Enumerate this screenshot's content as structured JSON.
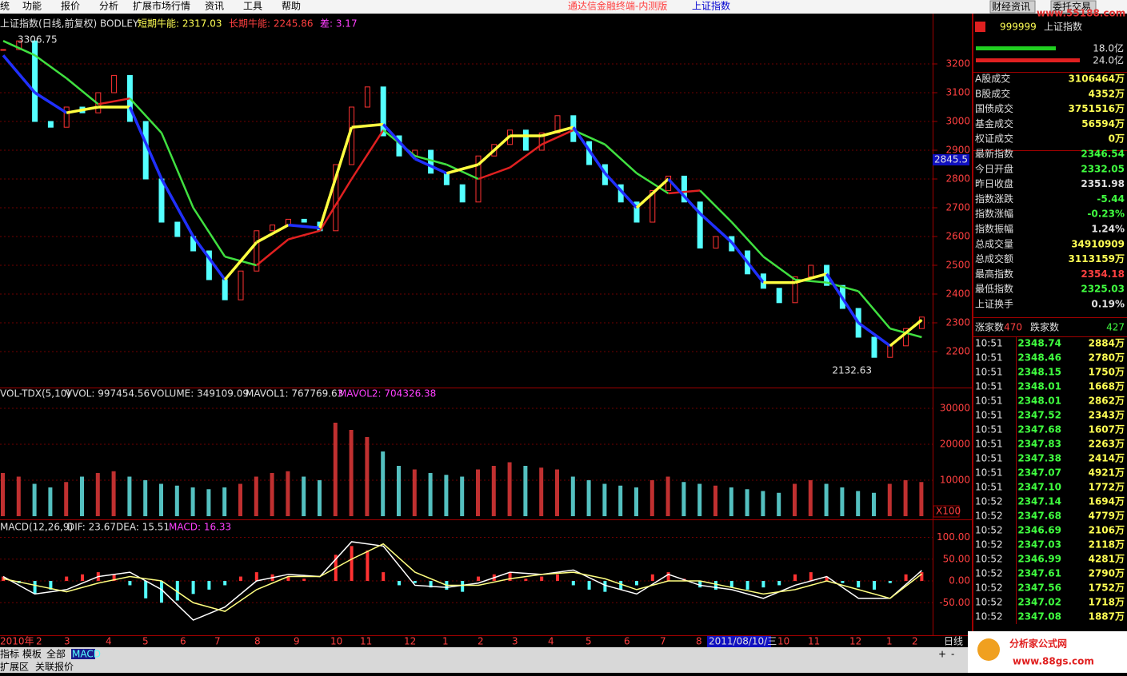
{
  "menu": {
    "items": [
      "统",
      "功能",
      "报价",
      "分析",
      "扩展市场行情",
      "资讯",
      "工具",
      "帮助"
    ],
    "title": "通达信金融终端-内测版",
    "title_link": "上证指数",
    "buttons": [
      "财经资讯",
      "委托交易"
    ],
    "watermark": "www.55188.com"
  },
  "main_chart": {
    "headers": [
      "上证指数(日线,前复权) BODLEY",
      "短期牛能: 2317.03",
      "长期牛能: 2245.86",
      "差: 3.17"
    ],
    "high_label": "3306.75",
    "low_label": "2132.63",
    "cursor_price": "2845.5",
    "yticks": [
      2200,
      2300,
      2400,
      2500,
      2600,
      2700,
      2800,
      2900,
      3000,
      3100,
      3200
    ],
    "close": [
      3250,
      3280,
      3000,
      2980,
      3050,
      3030,
      3100,
      3160,
      3000,
      2800,
      2650,
      2600,
      2550,
      2450,
      2380,
      2480,
      2620,
      2640,
      2660,
      2650,
      2620,
      2850,
      3050,
      3120,
      2950,
      2880,
      2900,
      2820,
      2780,
      2720,
      2880,
      2920,
      2970,
      2900,
      2960,
      3020,
      2930,
      2850,
      2780,
      2720,
      2650,
      2760,
      2810,
      2720,
      2560,
      2600,
      2550,
      2470,
      2420,
      2370,
      2460,
      2500,
      2430,
      2350,
      2250,
      2180,
      2220,
      2280,
      2320
    ],
    "short_ma": [
      3230,
      3100,
      3030,
      3050,
      3050,
      2800,
      2600,
      2450,
      2580,
      2640,
      2630,
      2980,
      2990,
      2870,
      2820,
      2850,
      2950,
      2950,
      2980,
      2820,
      2700,
      2800,
      2680,
      2580,
      2440,
      2440,
      2470,
      2300,
      2220,
      2310
    ],
    "long_ma": [
      3280,
      3230,
      3150,
      3060,
      3080,
      2960,
      2700,
      2530,
      2500,
      2590,
      2620,
      2800,
      2970,
      2880,
      2850,
      2800,
      2840,
      2920,
      2970,
      2920,
      2820,
      2750,
      2760,
      2650,
      2530,
      2450,
      2440,
      2410,
      2280,
      2250
    ]
  },
  "volume_chart": {
    "headers": [
      "VOL-TDX(5,10)",
      "VVOL: 997454.56",
      "VOLUME: 349109.09",
      "MAVOL1: 767769.63",
      "MAVOL2: 704326.38"
    ],
    "unit": "X100",
    "yticks": [
      10000,
      20000,
      30000
    ],
    "values": [
      12000,
      11000,
      9000,
      8000,
      9500,
      11000,
      12000,
      12500,
      11000,
      10000,
      9000,
      8500,
      8000,
      7500,
      8000,
      9000,
      11000,
      12000,
      12500,
      11000,
      10000,
      26000,
      24000,
      22000,
      18000,
      14000,
      13000,
      12000,
      11500,
      11000,
      13000,
      14000,
      15000,
      14000,
      13500,
      13000,
      11000,
      10000,
      9000,
      8500,
      8000,
      10000,
      11000,
      9500,
      9000,
      8500,
      8000,
      7500,
      7000,
      6500,
      9000,
      10000,
      9000,
      8000,
      7000,
      6500,
      9000,
      10000,
      9500
    ]
  },
  "macd_chart": {
    "headers": [
      "MACD(12,26,9)",
      "DIF: 23.67",
      "DEA: 15.51",
      "MACD: 16.33"
    ],
    "yticks": [
      {
        "value": 100,
        "label": "100.00"
      },
      {
        "value": 50,
        "label": "50.00"
      },
      {
        "value": 0,
        "label": "0.00"
      },
      {
        "value": -50,
        "label": "-50.00"
      }
    ],
    "macd": [
      10,
      -5,
      -30,
      -20,
      10,
      15,
      20,
      15,
      -10,
      -40,
      -50,
      -45,
      -30,
      -20,
      -10,
      10,
      20,
      15,
      10,
      5,
      0,
      60,
      80,
      70,
      20,
      -10,
      -5,
      -15,
      -20,
      -25,
      10,
      15,
      20,
      5,
      10,
      15,
      -10,
      -20,
      -25,
      -20,
      -10,
      15,
      20,
      5,
      -15,
      -20,
      -15,
      -20,
      -15,
      -10,
      15,
      20,
      10,
      -5,
      -15,
      -20,
      -5,
      15,
      20
    ],
    "dif": [
      10,
      -30,
      -20,
      10,
      20,
      -20,
      -90,
      -60,
      0,
      15,
      10,
      90,
      80,
      -10,
      -15,
      -5,
      20,
      15,
      25,
      -10,
      -30,
      15,
      -10,
      -20,
      -40,
      -10,
      10,
      -40,
      -40,
      24
    ],
    "dea": [
      5,
      -10,
      -25,
      -5,
      10,
      0,
      -50,
      -70,
      -20,
      10,
      10,
      50,
      85,
      20,
      -10,
      -10,
      5,
      15,
      20,
      5,
      -20,
      0,
      0,
      -15,
      -30,
      -20,
      0,
      -20,
      -40,
      16
    ]
  },
  "date_axis": {
    "labels": [
      "2010年",
      "2",
      "3",
      "4",
      "5",
      "6",
      "7",
      "8",
      "9",
      "10",
      "11",
      "12",
      "1",
      "2",
      "3",
      "4",
      "5",
      "6",
      "7",
      "8",
      "10",
      "11",
      "12",
      "1",
      "2"
    ],
    "cursor_date": "2011/08/10/三",
    "period": "日线"
  },
  "bottom_bar": {
    "tabs": [
      "指标",
      "模板",
      "全部",
      "MACD"
    ],
    "links": [
      "扩展区",
      "关联报价"
    ],
    "zoom": [
      "+",
      "-"
    ]
  },
  "quote": {
    "code": "999999",
    "name": "上证指数",
    "bar1": "18.0亿",
    "bar2": "24.0亿",
    "rows": [
      [
        "A股成交",
        "3106464万"
      ],
      [
        "B股成交",
        "4352万"
      ],
      [
        "国债成交",
        "3751516万"
      ],
      [
        "基金成交",
        "56594万"
      ],
      [
        "权证成交",
        "0万"
      ],
      [
        "最新指数",
        "2346.54"
      ],
      [
        "今日开盘",
        "2332.05"
      ],
      [
        "昨日收盘",
        "2351.98"
      ],
      [
        "指数涨跌",
        "-5.44"
      ],
      [
        "指数涨幅",
        "-0.23%"
      ],
      [
        "指数振幅",
        "1.24%"
      ],
      [
        "总成交量",
        "34910909"
      ],
      [
        "总成交额",
        "3113159万"
      ],
      [
        "最高指数",
        "2354.18"
      ],
      [
        "最低指数",
        "2325.03"
      ],
      [
        "上证换手",
        "0.19%"
      ]
    ]
  },
  "breadth": {
    "up_label": "涨家数",
    "up": "470",
    "down_label": "跌家数",
    "down": "427"
  },
  "ticks": [
    [
      "10:51",
      "2348.74",
      "2884万"
    ],
    [
      "10:51",
      "2348.46",
      "2780万"
    ],
    [
      "10:51",
      "2348.15",
      "1750万"
    ],
    [
      "10:51",
      "2348.01",
      "1668万"
    ],
    [
      "10:51",
      "2348.01",
      "2862万"
    ],
    [
      "10:51",
      "2347.52",
      "2343万"
    ],
    [
      "10:51",
      "2347.68",
      "1607万"
    ],
    [
      "10:51",
      "2347.83",
      "2263万"
    ],
    [
      "10:51",
      "2347.38",
      "2414万"
    ],
    [
      "10:51",
      "2347.07",
      "4921万"
    ],
    [
      "10:51",
      "2347.10",
      "1772万"
    ],
    [
      "10:52",
      "2347.14",
      "1694万"
    ],
    [
      "10:52",
      "2347.68",
      "4779万"
    ],
    [
      "10:52",
      "2346.69",
      "2106万"
    ],
    [
      "10:52",
      "2347.03",
      "2118万"
    ],
    [
      "10:52",
      "2346.99",
      "4281万"
    ],
    [
      "10:52",
      "2347.61",
      "2790万"
    ],
    [
      "10:52",
      "2347.56",
      "1752万"
    ],
    [
      "10:52",
      "2347.02",
      "1718万"
    ],
    [
      "10:52",
      "2347.08",
      "1887万"
    ]
  ],
  "logo": {
    "name": "分析家公式网",
    "url": "www.88gs.com"
  }
}
